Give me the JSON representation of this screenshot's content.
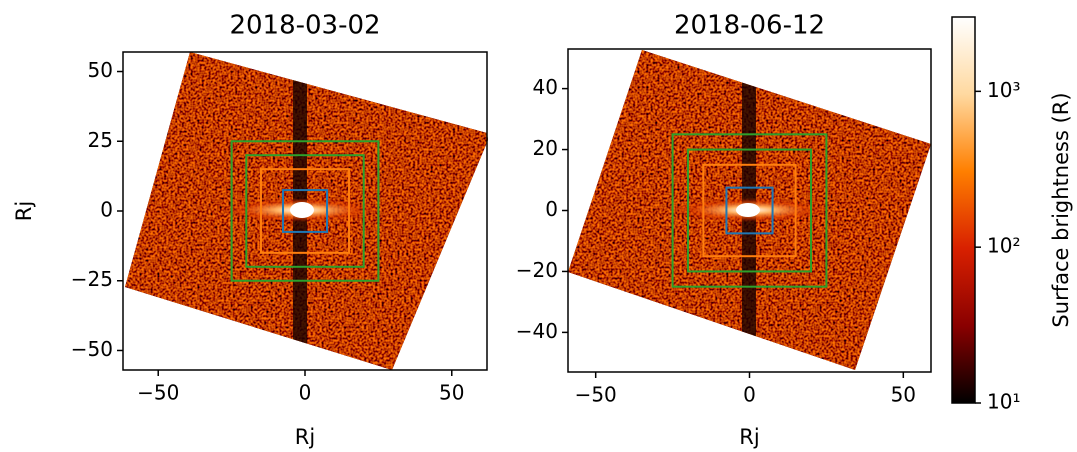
{
  "chart_data": [
    {
      "type": "image",
      "title": "2018-03-02",
      "xlabel": "Rj",
      "ylabel": "Rj",
      "xlim": [
        -62,
        62
      ],
      "ylim": [
        -57,
        57
      ],
      "xticks": [
        {
          "value": -50,
          "label": "−50"
        },
        0,
        50
      ],
      "yticks": [
        {
          "value": -50,
          "label": "−50"
        },
        {
          "value": -25,
          "label": "−25"
        },
        0,
        25,
        50
      ],
      "boxes": [
        {
          "color": "#1f77b4",
          "half_width": 7.5
        },
        {
          "color": "#ff7f0e",
          "half_width": 15
        },
        {
          "color": "#2ca02c",
          "half_width": 20
        },
        {
          "color": "#2ca02c",
          "half_width": 25
        }
      ]
    },
    {
      "type": "image",
      "title": "2018-06-12",
      "xlabel": "Rj",
      "xlim": [
        -59,
        59
      ],
      "ylim": [
        -53,
        53
      ],
      "xticks": [
        {
          "value": -50,
          "label": "−50"
        },
        0,
        50
      ],
      "yticks": [
        {
          "value": -40,
          "label": "−40"
        },
        {
          "value": -20,
          "label": "−20"
        },
        0,
        20,
        40
      ],
      "boxes": [
        {
          "color": "#1f77b4",
          "half_width": 7.5
        },
        {
          "color": "#ff7f0e",
          "half_width": 15
        },
        {
          "color": "#2ca02c",
          "half_width": 20
        },
        {
          "color": "#2ca02c",
          "half_width": 25
        }
      ]
    },
    {
      "type": "colorbar",
      "label": "Surface brightness (R)",
      "log": true,
      "ylim": [
        10,
        3000
      ],
      "yticks": [
        {
          "value": 10,
          "label": "10¹"
        },
        {
          "value": 100,
          "label": "10²"
        },
        {
          "value": 1000,
          "label": "10³"
        }
      ],
      "colors": [
        "#000000",
        "#8a0000",
        "#d82000",
        "#ff7f00",
        "#ffd9a0",
        "#ffffff"
      ]
    }
  ]
}
